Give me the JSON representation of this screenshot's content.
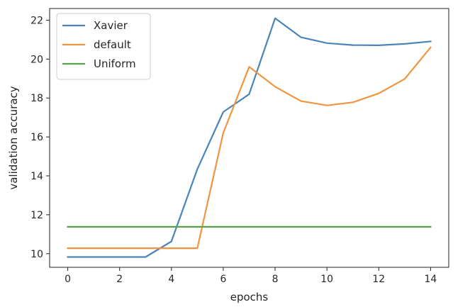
{
  "chart_data": {
    "type": "line",
    "xlabel": "epochs",
    "ylabel": "validation accuracy",
    "xlim": [
      -0.7,
      14.7
    ],
    "ylim": [
      9.3,
      22.6
    ],
    "xticks": [
      0,
      2,
      4,
      6,
      8,
      10,
      12,
      14
    ],
    "yticks": [
      10,
      12,
      14,
      16,
      18,
      20,
      22
    ],
    "grid": false,
    "legend_position": "top-left",
    "x": [
      0,
      1,
      2,
      3,
      4,
      5,
      6,
      7,
      8,
      9,
      10,
      11,
      12,
      13,
      14
    ],
    "series": [
      {
        "name": "Xavier",
        "color": "#4b84b9",
        "values": [
          9.83,
          9.83,
          9.83,
          9.83,
          10.63,
          14.35,
          17.28,
          18.2,
          22.1,
          21.12,
          20.82,
          20.72,
          20.71,
          20.78,
          20.91
        ]
      },
      {
        "name": "default",
        "color": "#f0953f",
        "values": [
          10.28,
          10.28,
          10.28,
          10.28,
          10.28,
          10.28,
          16.2,
          19.6,
          18.58,
          17.84,
          17.62,
          17.78,
          18.24,
          18.98,
          20.6
        ]
      },
      {
        "name": "Uniform",
        "color": "#54a34a",
        "values": [
          11.38,
          11.38,
          11.38,
          11.38,
          11.38,
          11.38,
          11.38,
          11.38,
          11.38,
          11.38,
          11.38,
          11.38,
          11.38,
          11.38,
          11.38
        ]
      }
    ]
  }
}
